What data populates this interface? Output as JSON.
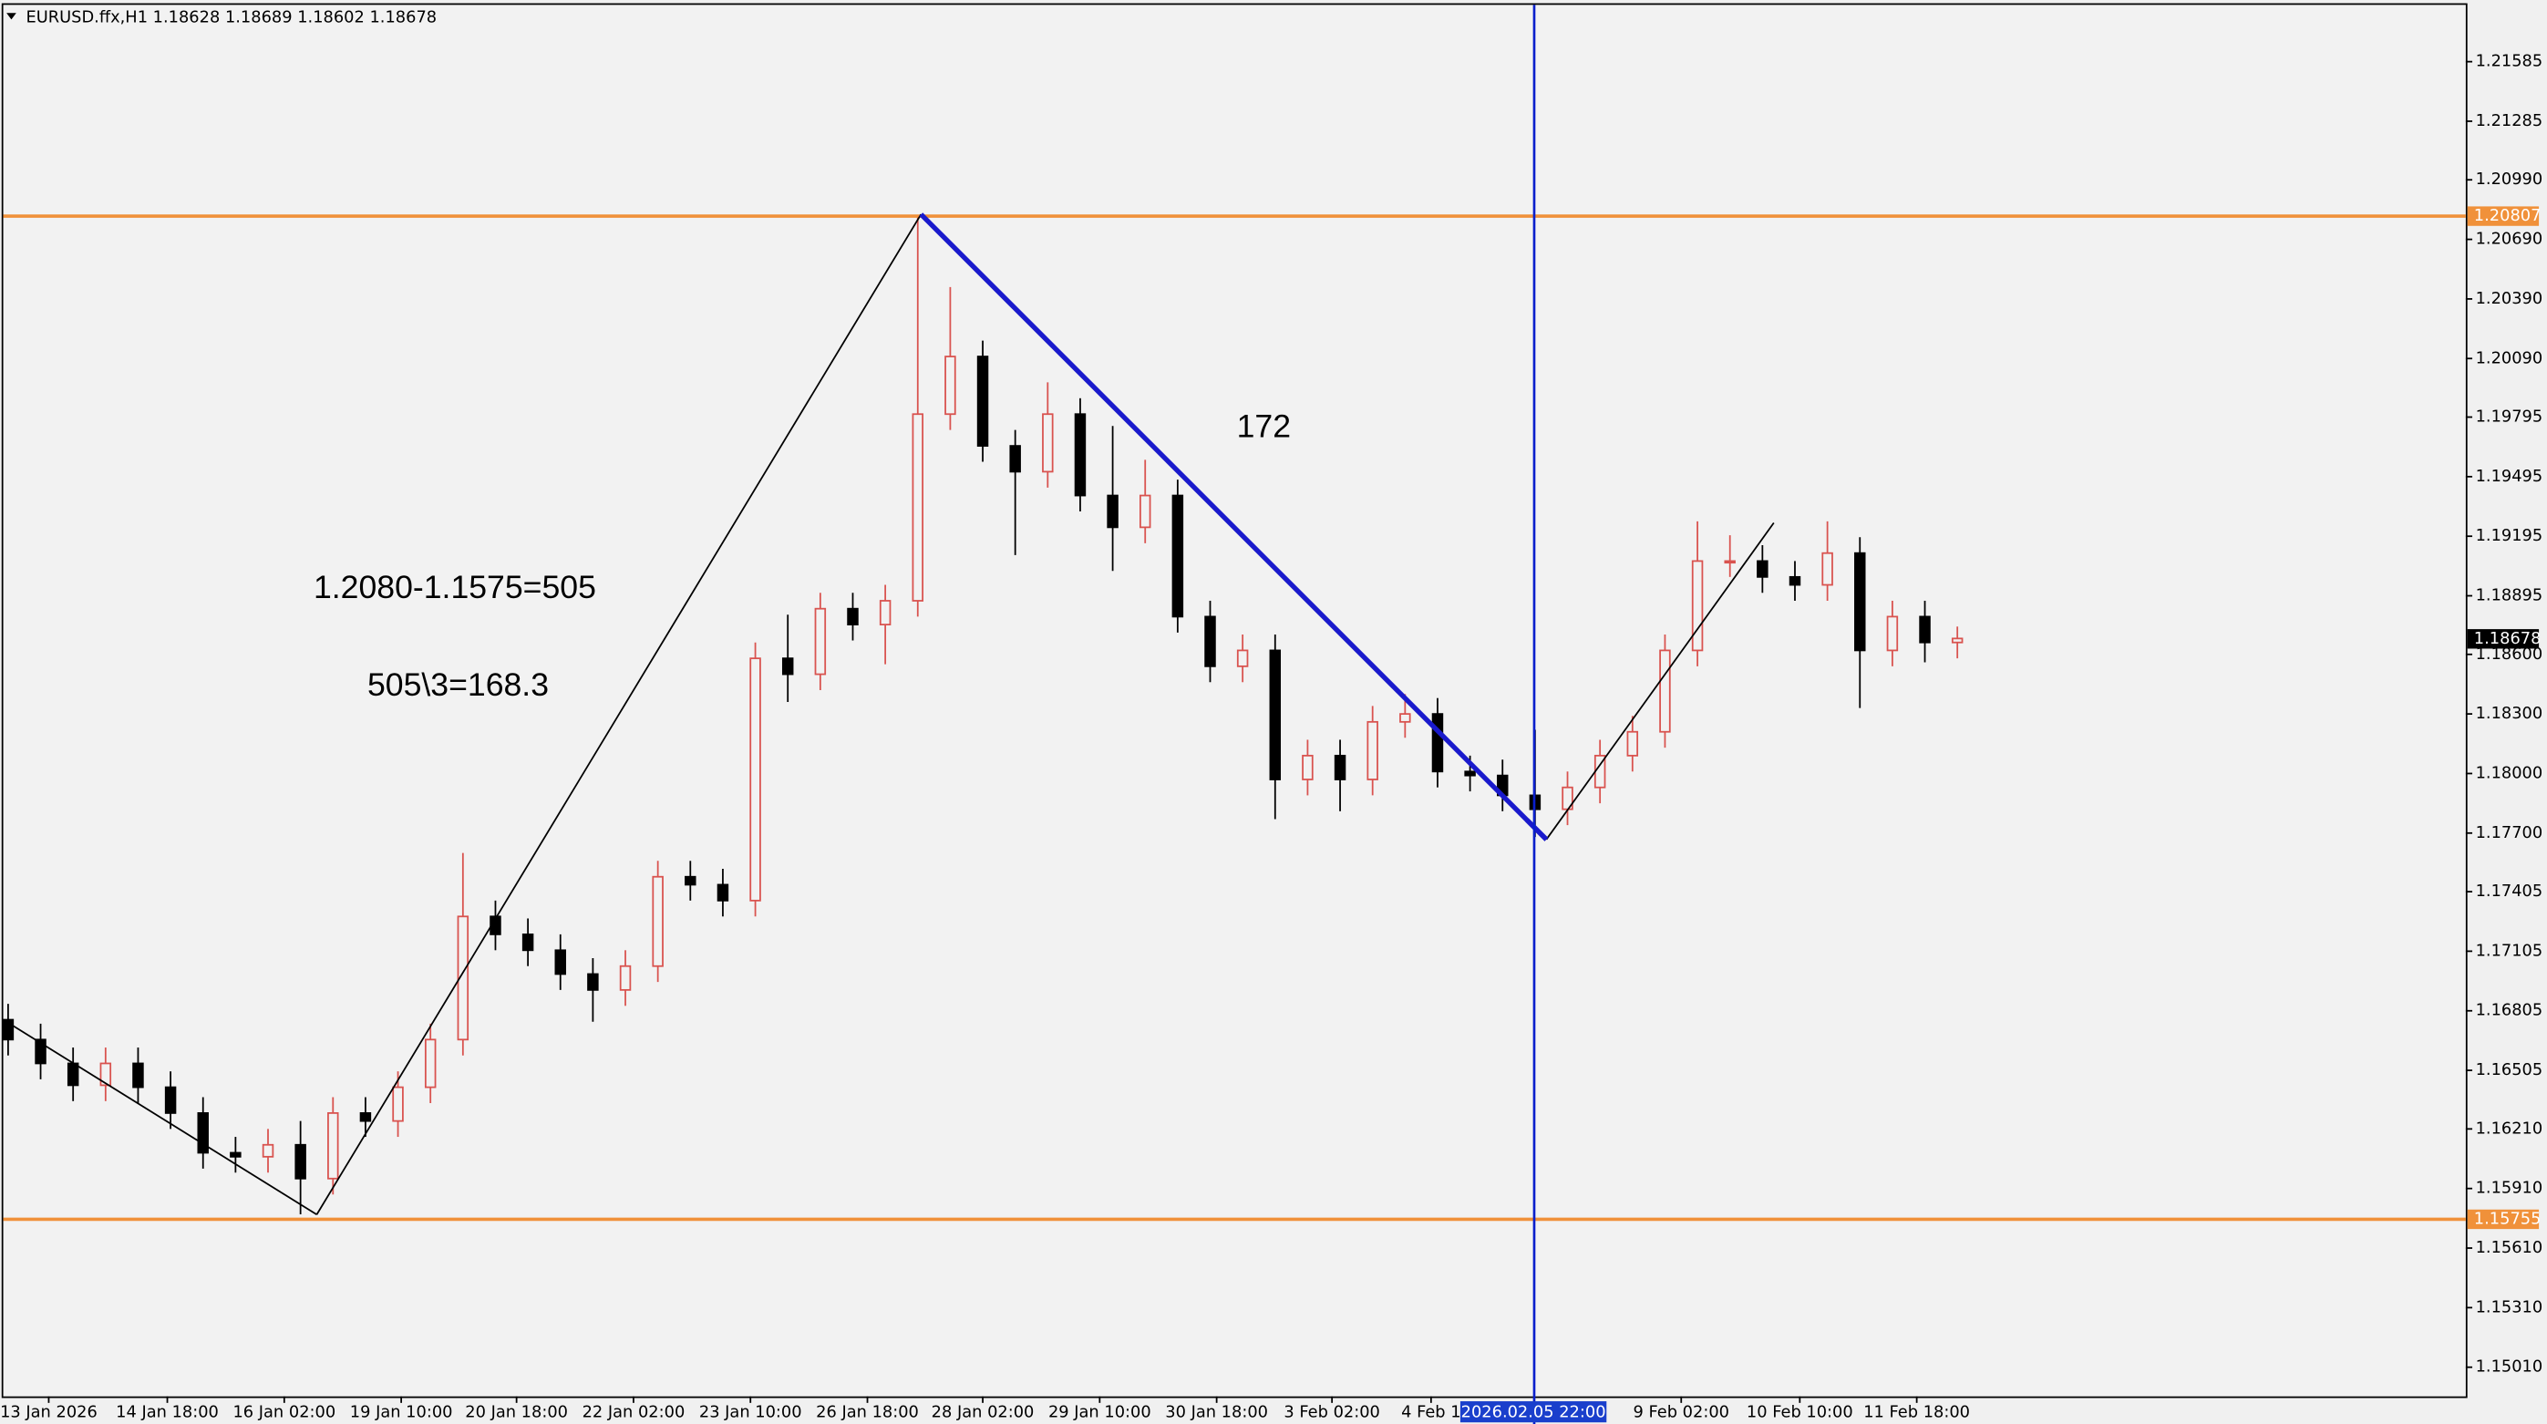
{
  "chart_data": {
    "type": "candlestick",
    "header": "EURUSD.ffx,H1  1.18628 1.18689 1.18602 1.18678",
    "ylim": [
      1.14863,
      1.21871
    ],
    "yticks": [
      1.21585,
      1.21285,
      {
        "value": 1.2099,
        "label": "1.20990"
      },
      {
        "value": 1.2069,
        "label": "1.20690"
      },
      {
        "value": 1.2039,
        "label": "1.20390"
      },
      {
        "value": 1.2009,
        "label": "1.20090"
      },
      1.19795,
      1.19495,
      1.19195,
      1.18895,
      {
        "value": 1.186,
        "label": "1.18600"
      },
      {
        "value": 1.183,
        "label": "1.18300"
      },
      {
        "value": 1.18,
        "label": "1.18000"
      },
      {
        "value": 1.177,
        "label": "1.17700"
      },
      1.17405,
      1.17105,
      1.16805,
      1.16505,
      {
        "value": 1.1621,
        "label": "1.16210"
      },
      {
        "value": 1.1591,
        "label": "1.15910"
      },
      {
        "value": 1.1561,
        "label": "1.15610"
      },
      {
        "value": 1.1531,
        "label": "1.15310"
      },
      {
        "value": 1.1501,
        "label": "1.15010"
      }
    ],
    "categories": [
      "13 Jan 2026",
      "14 Jan 18:00",
      "16 Jan 02:00",
      "19 Jan 10:00",
      "20 Jan 18:00",
      "22 Jan 02:00",
      "23 Jan 10:00",
      "26 Jan 18:00",
      "28 Jan 02:00",
      "29 Jan 10:00",
      "30 Jan 18:00",
      "3 Feb 02:00",
      "4 Feb 1",
      "9 Feb 02:00",
      "10 Feb 10:00",
      "11 Feb 18:00"
    ],
    "cursor_label": "2026.02.05 22:00",
    "up_color": "#d9534f",
    "down_color": "#000000",
    "levels": [
      1.20807,
      1.15755
    ],
    "level_color": "#f0913a",
    "last": 1.18678,
    "annotations": [
      "1.2080-1.1575=505",
      "505\\3=168.3",
      "172"
    ],
    "candles": [
      [
        1.1676,
        1.1684,
        1.1658,
        1.1666
      ],
      [
        1.1666,
        1.1674,
        1.1646,
        1.1654
      ],
      [
        1.1654,
        1.1662,
        1.1635,
        1.1643
      ],
      [
        1.1643,
        1.1662,
        1.1635,
        1.1654
      ],
      [
        1.1654,
        1.1662,
        1.1634,
        1.1642
      ],
      [
        1.1642,
        1.165,
        1.1621,
        1.1629
      ],
      [
        1.1629,
        1.1637,
        1.1601,
        1.1609
      ],
      [
        1.1609,
        1.1617,
        1.1599,
        1.1607
      ],
      [
        1.1607,
        1.1621,
        1.1599,
        1.1613
      ],
      [
        1.1613,
        1.1625,
        1.1578,
        1.1596
      ],
      [
        1.1596,
        1.1637,
        1.1588,
        1.1629
      ],
      [
        1.1629,
        1.1637,
        1.1617,
        1.1625
      ],
      [
        1.1625,
        1.165,
        1.1617,
        1.1642
      ],
      [
        1.1642,
        1.1674,
        1.1634,
        1.1666
      ],
      [
        1.1666,
        1.176,
        1.1658,
        1.1728
      ],
      [
        1.1728,
        1.1736,
        1.1711,
        1.1719
      ],
      [
        1.1719,
        1.1727,
        1.1703,
        1.1711
      ],
      [
        1.1711,
        1.1719,
        1.1691,
        1.1699
      ],
      [
        1.1699,
        1.1707,
        1.1675,
        1.1691
      ],
      [
        1.1691,
        1.1711,
        1.1683,
        1.1703
      ],
      [
        1.1703,
        1.1756,
        1.1695,
        1.1748
      ],
      [
        1.1748,
        1.1756,
        1.1736,
        1.1744
      ],
      [
        1.1744,
        1.1752,
        1.1728,
        1.1736
      ],
      [
        1.1736,
        1.1866,
        1.1728,
        1.1858
      ],
      [
        1.1858,
        1.188,
        1.1836,
        1.185
      ],
      [
        1.185,
        1.1891,
        1.1842,
        1.1883
      ],
      [
        1.1883,
        1.1891,
        1.1867,
        1.1875
      ],
      [
        1.1875,
        1.1895,
        1.1855,
        1.1887
      ],
      [
        1.1887,
        1.2081,
        1.1879,
        1.1981
      ],
      [
        1.1981,
        1.2045,
        1.1973,
        1.201
      ],
      [
        1.201,
        1.2018,
        1.1957,
        1.1965
      ],
      [
        1.1965,
        1.1973,
        1.191,
        1.1952
      ],
      [
        1.1952,
        1.1997,
        1.1944,
        1.1981
      ],
      [
        1.1981,
        1.1989,
        1.1932,
        1.194
      ],
      [
        1.194,
        1.1975,
        1.1902,
        1.1924
      ],
      [
        1.1924,
        1.1958,
        1.1916,
        1.194
      ],
      [
        1.194,
        1.1948,
        1.1871,
        1.1879
      ],
      [
        1.1879,
        1.1887,
        1.1846,
        1.1854
      ],
      [
        1.1854,
        1.187,
        1.1846,
        1.1862
      ],
      [
        1.1862,
        1.187,
        1.1777,
        1.1797
      ],
      [
        1.1797,
        1.1817,
        1.1789,
        1.1809
      ],
      [
        1.1809,
        1.1817,
        1.1781,
        1.1797
      ],
      [
        1.1797,
        1.1834,
        1.1789,
        1.1826
      ],
      [
        1.1826,
        1.184,
        1.1818,
        1.183
      ],
      [
        1.183,
        1.1838,
        1.1793,
        1.1801
      ],
      [
        1.1801,
        1.1809,
        1.1791,
        1.1799
      ],
      [
        1.1799,
        1.1807,
        1.1781,
        1.1789
      ],
      [
        1.1789,
        1.1822,
        1.1768,
        1.1782
      ],
      [
        1.1782,
        1.1801,
        1.1774,
        1.1793
      ],
      [
        1.1793,
        1.1817,
        1.1785,
        1.1809
      ],
      [
        1.1809,
        1.1829,
        1.1801,
        1.1821
      ],
      [
        1.1821,
        1.187,
        1.1813,
        1.1862
      ],
      [
        1.1862,
        1.1927,
        1.1854,
        1.1907
      ],
      [
        1.1907,
        1.192,
        1.1899,
        1.1907
      ],
      [
        1.1907,
        1.1915,
        1.1891,
        1.1899
      ],
      [
        1.1899,
        1.1907,
        1.1887,
        1.1895
      ],
      [
        1.1895,
        1.1927,
        1.1887,
        1.1911
      ],
      [
        1.1911,
        1.1919,
        1.1833,
        1.1862
      ],
      [
        1.1862,
        1.1887,
        1.1854,
        1.1879
      ],
      [
        1.1879,
        1.1887,
        1.1856,
        1.1866
      ],
      [
        1.1866,
        1.1874,
        1.1858,
        1.1868
      ]
    ]
  }
}
